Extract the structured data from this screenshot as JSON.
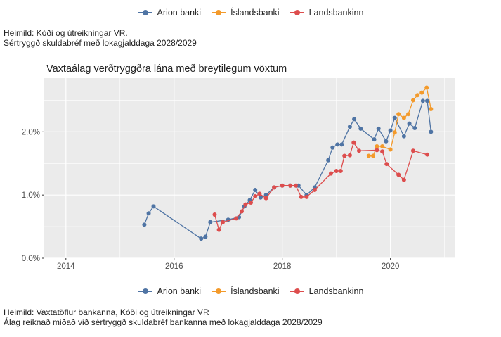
{
  "legend": {
    "items": [
      {
        "label": "Arion banki",
        "color": "#4f74a4"
      },
      {
        "label": "Íslandsbanki",
        "color": "#f39a2b"
      },
      {
        "label": "Landsbankinn",
        "color": "#dd4d4d"
      }
    ]
  },
  "top_note": {
    "line1": "Heimild: Kóði og útreikningar VR.",
    "line2": "Sértryggð skuldabréf með lokagjalddaga 2028/2029"
  },
  "bottom_note": {
    "line1": "Heimild: Vaxtatöflur bankanna, Kóði og útreikningar VR",
    "line2": "Álag reiknað miðað við sértryggð skuldabréf bankanna með lokagjalddaga 2028/2029"
  },
  "chart_data": {
    "type": "line",
    "title": "Vaxtaálag verðtryggðra lána með breytilegum vöxtum",
    "xlabel": "",
    "ylabel": "",
    "xlim": [
      2013.6,
      2021.2
    ],
    "ylim": [
      0.0,
      2.85
    ],
    "x_ticks": [
      2014,
      2016,
      2018,
      2020
    ],
    "x_tick_labels": [
      "2014",
      "2016",
      "2018",
      "2020"
    ],
    "y_ticks": [
      0,
      1,
      2
    ],
    "y_tick_labels": [
      "0.0%",
      "1.0%",
      "2.0%"
    ],
    "grid": true,
    "legend_position": "top and bottom",
    "series": [
      {
        "name": "Arion banki",
        "color": "#4f74a4",
        "x": [
          2015.45,
          2015.53,
          2015.62,
          2016.5,
          2016.58,
          2016.67,
          2017.0,
          2017.2,
          2017.3,
          2017.4,
          2017.5,
          2017.6,
          2017.7,
          2017.85,
          2018.0,
          2018.15,
          2018.3,
          2018.45,
          2018.6,
          2018.85,
          2018.93,
          2019.02,
          2019.1,
          2019.25,
          2019.33,
          2019.45,
          2019.7,
          2019.78,
          2019.92,
          2020.0,
          2020.08,
          2020.25,
          2020.35,
          2020.45,
          2020.6,
          2020.68,
          2020.75
        ],
        "y": [
          0.53,
          0.71,
          0.82,
          0.31,
          0.34,
          0.57,
          0.61,
          0.65,
          0.82,
          0.92,
          1.08,
          0.96,
          1.0,
          1.12,
          1.15,
          1.15,
          1.15,
          1.0,
          1.12,
          1.55,
          1.75,
          1.8,
          1.8,
          2.08,
          2.2,
          2.05,
          1.88,
          2.05,
          1.85,
          2.02,
          2.22,
          1.93,
          2.13,
          2.06,
          2.49,
          2.49,
          2.0
        ]
      },
      {
        "name": "Íslandsbanki",
        "color": "#f39a2b",
        "x": [
          2019.6,
          2019.68,
          2019.75,
          2019.85,
          2020.0,
          2020.08,
          2020.15,
          2020.25,
          2020.33,
          2020.42,
          2020.5,
          2020.58,
          2020.67,
          2020.75
        ],
        "y": [
          1.62,
          1.62,
          1.77,
          1.77,
          1.72,
          1.99,
          2.28,
          2.22,
          2.28,
          2.5,
          2.58,
          2.62,
          2.7,
          2.36
        ]
      },
      {
        "name": "Landsbankinn",
        "color": "#dd4d4d",
        "x": [
          2016.75,
          2016.83,
          2016.9,
          2017.15,
          2017.25,
          2017.32,
          2017.42,
          2017.5,
          2017.58,
          2017.7,
          2017.85,
          2018.0,
          2018.15,
          2018.25,
          2018.35,
          2018.45,
          2018.6,
          2018.9,
          2019.0,
          2019.08,
          2019.15,
          2019.25,
          2019.32,
          2019.42,
          2019.75,
          2019.85,
          2019.93,
          2020.15,
          2020.25,
          2020.42,
          2020.68
        ],
        "y": [
          0.69,
          0.45,
          0.57,
          0.63,
          0.74,
          0.85,
          0.88,
          0.98,
          1.02,
          0.95,
          1.12,
          1.15,
          1.15,
          1.15,
          0.97,
          0.97,
          1.08,
          1.34,
          1.38,
          1.38,
          1.62,
          1.63,
          1.83,
          1.7,
          1.71,
          1.69,
          1.49,
          1.32,
          1.24,
          1.7,
          1.64
        ]
      }
    ]
  }
}
